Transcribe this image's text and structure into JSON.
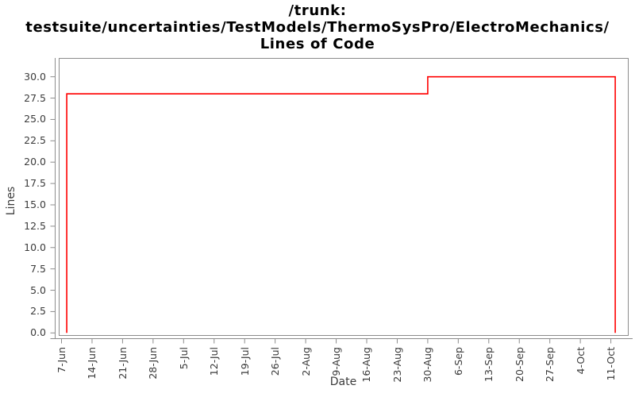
{
  "title": {
    "line1": "/trunk:",
    "line2": "testsuite/uncertainties/TestModels/ThermoSysPro/ElectroMechanics/",
    "line3": "Lines of Code"
  },
  "chart_data": {
    "type": "line",
    "line_style": "step",
    "title": "/trunk: testsuite/uncertainties/TestModels/ThermoSysPro/ElectroMechanics/ Lines of Code",
    "xlabel": "Date",
    "ylabel": "Lines",
    "x_tick_labels": [
      "7-Jun",
      "14-Jun",
      "21-Jun",
      "28-Jun",
      "5-Jul",
      "12-Jul",
      "19-Jul",
      "26-Jul",
      "2-Aug",
      "9-Aug",
      "16-Aug",
      "23-Aug",
      "30-Aug",
      "6-Sep",
      "13-Sep",
      "20-Sep",
      "27-Sep",
      "4-Oct",
      "11-Oct"
    ],
    "x_tick_day_offsets": [
      0,
      7,
      14,
      21,
      28,
      35,
      42,
      49,
      56,
      63,
      70,
      77,
      84,
      91,
      98,
      105,
      112,
      119,
      126
    ],
    "y_tick_labels": [
      "0.0",
      "2.5",
      "5.0",
      "7.5",
      "10.0",
      "12.5",
      "15.0",
      "17.5",
      "20.0",
      "22.5",
      "25.0",
      "27.5",
      "30.0"
    ],
    "y_tick_values": [
      0,
      2.5,
      5,
      7.5,
      10,
      12.5,
      15,
      17.5,
      20,
      22.5,
      25,
      27.5,
      30
    ],
    "xlim_days": [
      -0.64,
      129.9
    ],
    "ylim": [
      -0.25,
      32.2
    ],
    "grid": false,
    "legend": false,
    "colors": {
      "line": "#ff0000",
      "axis": "#8c8c8c",
      "tick_label": "#3b3b3b",
      "title": "#000000",
      "background": "#ffffff"
    },
    "series": [
      {
        "name": "Lines of Code",
        "points": [
          {
            "date": "8-Jun",
            "day": 1.2,
            "value": 0
          },
          {
            "date": "8-Jun",
            "day": 1.2,
            "value": 28
          },
          {
            "date": "30-Aug",
            "day": 84,
            "value": 28
          },
          {
            "date": "30-Aug",
            "day": 84,
            "value": 30
          },
          {
            "date": "12-Oct",
            "day": 127,
            "value": 30
          },
          {
            "date": "12-Oct",
            "day": 127,
            "value": 0
          }
        ]
      }
    ]
  }
}
